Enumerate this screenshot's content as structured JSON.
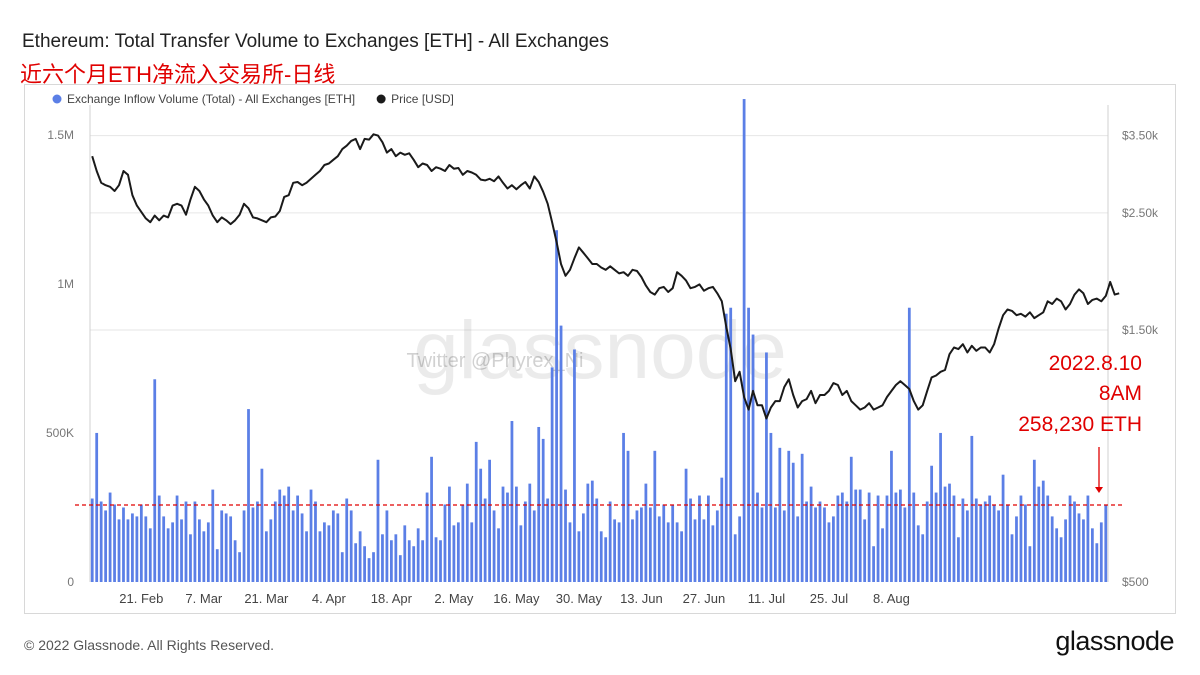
{
  "title": "Ethereum: Total Transfer Volume to Exchanges [ETH] - All Exchanges",
  "subtitle": "近六个月ETH净流入交易所-日线",
  "watermark": "glassnode",
  "watermark2": "Twitter @Phyrex_Ni",
  "footer": {
    "copyright": "© 2022 Glassnode. All Rights Reserved.",
    "logo": "glassnode"
  },
  "annotation": {
    "date": "2022.8.10",
    "time": "8AM",
    "value": "258,230 ETH"
  },
  "colors": {
    "bar": "#5b7fe6",
    "price": "#1a1a1a",
    "reference": "#e00000"
  },
  "chart_data": {
    "type": "bar",
    "legend_position": "top-left",
    "grid": true,
    "legend": [
      {
        "name": "Exchange Inflow Volume (Total) - All Exchanges [ETH]",
        "color": "#5b7fe6"
      },
      {
        "name": "Price [USD]",
        "color": "#1a1a1a"
      }
    ],
    "x_start": "2022-02-10",
    "x_ticks": [
      {
        "date": "2022-02-21",
        "label": "21. Feb"
      },
      {
        "date": "2022-03-07",
        "label": "7. Mar"
      },
      {
        "date": "2022-03-21",
        "label": "21. Mar"
      },
      {
        "date": "2022-04-04",
        "label": "4. Apr"
      },
      {
        "date": "2022-04-18",
        "label": "18. Apr"
      },
      {
        "date": "2022-05-02",
        "label": "2. May"
      },
      {
        "date": "2022-05-16",
        "label": "16. May"
      },
      {
        "date": "2022-05-30",
        "label": "30. May"
      },
      {
        "date": "2022-06-13",
        "label": "13. Jun"
      },
      {
        "date": "2022-06-27",
        "label": "27. Jun"
      },
      {
        "date": "2022-07-11",
        "label": "11. Jul"
      },
      {
        "date": "2022-07-25",
        "label": "25. Jul"
      },
      {
        "date": "2022-08-08",
        "label": "8. Aug"
      }
    ],
    "y_left": {
      "ylim": [
        0,
        1600000
      ],
      "ticks": [
        {
          "v": 0,
          "label": "0"
        },
        {
          "v": 500000,
          "label": "500K"
        },
        {
          "v": 1000000,
          "label": "1M"
        },
        {
          "v": 1500000,
          "label": "1.5M"
        }
      ]
    },
    "y_right": {
      "ylim": [
        500,
        4000
      ],
      "scale": "log",
      "ticks": [
        {
          "v": 500,
          "label": "$500"
        },
        {
          "v": 1500,
          "label": "$1.50k"
        },
        {
          "v": 2500,
          "label": "$2.50k"
        },
        {
          "v": 3500,
          "label": "$3.50k"
        }
      ]
    },
    "reference_line": 258230,
    "inflow": [
      280000,
      500000,
      270000,
      240000,
      300000,
      260000,
      210000,
      250000,
      210000,
      230000,
      220000,
      260000,
      220000,
      180000,
      680000,
      290000,
      220000,
      180000,
      200000,
      290000,
      210000,
      270000,
      160000,
      270000,
      210000,
      170000,
      200000,
      310000,
      110000,
      240000,
      230000,
      220000,
      140000,
      100000,
      240000,
      580000,
      250000,
      270000,
      380000,
      170000,
      210000,
      270000,
      310000,
      290000,
      320000,
      240000,
      290000,
      230000,
      170000,
      310000,
      270000,
      170000,
      200000,
      190000,
      240000,
      230000,
      100000,
      280000,
      240000,
      130000,
      170000,
      120000,
      80000,
      100000,
      410000,
      160000,
      240000,
      140000,
      160000,
      90000,
      190000,
      140000,
      120000,
      180000,
      140000,
      300000,
      420000,
      150000,
      140000,
      260000,
      320000,
      190000,
      200000,
      260000,
      330000,
      200000,
      470000,
      380000,
      280000,
      410000,
      240000,
      180000,
      320000,
      300000,
      540000,
      320000,
      190000,
      270000,
      330000,
      240000,
      520000,
      480000,
      280000,
      720000,
      1180000,
      860000,
      310000,
      200000,
      780000,
      170000,
      230000,
      330000,
      340000,
      280000,
      170000,
      150000,
      270000,
      210000,
      200000,
      500000,
      440000,
      210000,
      240000,
      250000,
      330000,
      250000,
      440000,
      220000,
      260000,
      200000,
      260000,
      200000,
      170000,
      380000,
      280000,
      210000,
      290000,
      210000,
      290000,
      190000,
      240000,
      350000,
      900000,
      920000,
      160000,
      220000,
      1620000,
      920000,
      830000,
      300000,
      250000,
      770000,
      500000,
      250000,
      450000,
      240000,
      440000,
      400000,
      220000,
      430000,
      270000,
      320000,
      250000,
      270000,
      250000,
      200000,
      220000,
      290000,
      300000,
      270000,
      420000,
      310000,
      310000,
      210000,
      300000,
      120000,
      290000,
      180000,
      290000,
      440000,
      300000,
      310000,
      250000,
      920000,
      300000,
      190000,
      160000,
      270000,
      390000,
      300000,
      500000,
      320000,
      330000,
      290000,
      150000,
      280000,
      240000,
      490000,
      280000,
      260000,
      270000,
      290000,
      260000,
      240000,
      360000,
      260000,
      160000,
      220000,
      290000,
      260000,
      120000,
      410000,
      320000,
      340000,
      290000,
      220000,
      180000,
      150000,
      210000,
      290000,
      270000,
      230000,
      210000,
      290000,
      180000,
      130000,
      200000,
      258230
    ],
    "price": [
      3200,
      3000,
      2850,
      2820,
      2800,
      2750,
      2820,
      3000,
      2950,
      2700,
      2580,
      2510,
      2440,
      2400,
      2470,
      2420,
      2470,
      2450,
      2580,
      2600,
      2580,
      2480,
      2650,
      2800,
      2750,
      2650,
      2580,
      2470,
      2400,
      2450,
      2420,
      2380,
      2420,
      2480,
      2600,
      2550,
      2450,
      2440,
      2420,
      2400,
      2450,
      2460,
      2520,
      2680,
      2700,
      2850,
      2860,
      2820,
      2850,
      2900,
      2950,
      3000,
      3080,
      3100,
      3150,
      3200,
      3300,
      3350,
      3420,
      3450,
      3300,
      3450,
      3440,
      3520,
      3500,
      3400,
      3250,
      3300,
      3200,
      3250,
      3220,
      3240,
      3150,
      3050,
      3100,
      3080,
      3000,
      3050,
      3030,
      3000,
      3080,
      3030,
      3040,
      2950,
      3000,
      2980,
      2950,
      2890,
      2880,
      2900,
      2870,
      2930,
      2850,
      2780,
      2820,
      2770,
      2820,
      2860,
      2780,
      2930,
      2860,
      2740,
      2600,
      2400,
      2200,
      2000,
      1900,
      1950,
      2050,
      2150,
      2100,
      2050,
      2000,
      2000,
      1970,
      1950,
      1980,
      1950,
      1920,
      1930,
      1900,
      1950,
      1940,
      1890,
      1820,
      1770,
      1750,
      1800,
      1810,
      1770,
      1800,
      1930,
      1900,
      1860,
      1800,
      1810,
      1830,
      1780,
      1800,
      1810,
      1760,
      1700,
      1520,
      1380,
      1200,
      1250,
      1120,
      1060,
      1150,
      1080,
      1080,
      1020,
      1070,
      1100,
      1100,
      1170,
      1210,
      1130,
      1070,
      1100,
      1110,
      1150,
      1090,
      1130,
      1130,
      1150,
      1190,
      1180,
      1130,
      1150,
      1100,
      1080,
      1060,
      1070,
      1090,
      1060,
      1070,
      1080,
      1120,
      1150,
      1180,
      1200,
      1180,
      1160,
      1100,
      1060,
      1080,
      1150,
      1220,
      1230,
      1250,
      1260,
      1350,
      1390,
      1380,
      1410,
      1360,
      1400,
      1370,
      1390,
      1390,
      1360,
      1410,
      1510,
      1600,
      1640,
      1630,
      1600,
      1610,
      1590,
      1620,
      1580,
      1600,
      1620,
      1700,
      1680,
      1720,
      1700,
      1640,
      1680,
      1750,
      1790,
      1760,
      1680,
      1710,
      1720,
      1700,
      1740,
      1850,
      1750,
      1760
    ]
  }
}
